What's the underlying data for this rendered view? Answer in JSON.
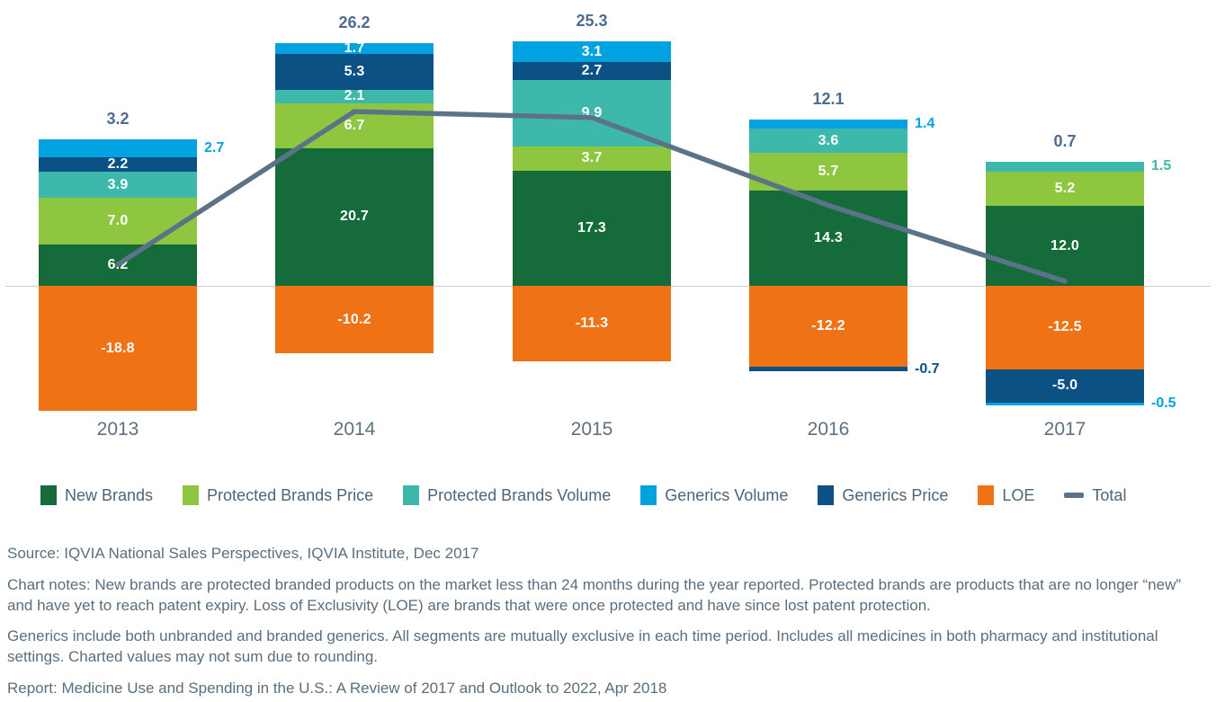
{
  "chart_data": {
    "type": "bar",
    "subtype": "stacked-bar-with-total-line",
    "title": "",
    "xlabel": "",
    "ylabel": "",
    "gridlines": false,
    "zero_line": true,
    "ylim": [
      -25,
      40
    ],
    "categories": [
      "2013",
      "2014",
      "2015",
      "2016",
      "2017"
    ],
    "series": [
      {
        "name": "New Brands",
        "color": "#156B39",
        "values": [
          6.2,
          20.7,
          17.3,
          14.3,
          12.0
        ]
      },
      {
        "name": "Protected Brands Price",
        "color": "#8FC640",
        "values": [
          7.0,
          6.7,
          3.7,
          5.7,
          5.2
        ]
      },
      {
        "name": "Protected Brands Volume",
        "color": "#3EB8AB",
        "values": [
          3.9,
          2.1,
          9.9,
          3.6,
          1.5
        ]
      },
      {
        "name": "Generics Volume",
        "color": "#00A3E0",
        "values": [
          2.7,
          1.7,
          3.1,
          1.4,
          -0.5
        ]
      },
      {
        "name": "Generics Price",
        "color": "#0C5183",
        "values": [
          2.2,
          5.3,
          2.7,
          -0.7,
          -5.0
        ]
      },
      {
        "name": "LOE",
        "color": "#EF7315",
        "values": [
          -18.8,
          -10.2,
          -11.3,
          -12.2,
          -12.5
        ]
      }
    ],
    "line_series": {
      "name": "Total",
      "color": "#5B7389",
      "values": [
        3.2,
        26.2,
        25.3,
        12.1,
        0.7
      ]
    },
    "stack_order_above": [
      "New Brands",
      "Protected Brands Price",
      "Protected Brands Volume",
      "Generics Price",
      "Generics Volume"
    ],
    "stack_order_below": [
      "LOE",
      "Generics Price",
      "Generics Volume"
    ],
    "outside_labels": [
      [
        "2013",
        "Generics Volume"
      ],
      [
        "2016",
        "Generics Volume"
      ],
      [
        "2016",
        "Generics Price"
      ],
      [
        "2017",
        "Protected Brands Volume"
      ],
      [
        "2017",
        "Generics Volume"
      ]
    ],
    "legend": [
      {
        "label": "New Brands",
        "color": "#156B39",
        "swatch": "rect"
      },
      {
        "label": "Protected Brands Price",
        "color": "#8FC640",
        "swatch": "rect"
      },
      {
        "label": "Protected Brands Volume",
        "color": "#3EB8AB",
        "swatch": "rect"
      },
      {
        "label": "Generics Volume",
        "color": "#00A3E0",
        "swatch": "rect"
      },
      {
        "label": "Generics Price",
        "color": "#0C5183",
        "swatch": "rect"
      },
      {
        "label": "LOE",
        "color": "#EF7315",
        "swatch": "rect"
      },
      {
        "label": "Total",
        "color": "#5B7389",
        "swatch": "line"
      }
    ],
    "legend_position": "bottom"
  },
  "notes": {
    "source": "Source: IQVIA National Sales Perspectives, IQVIA Institute, Dec 2017",
    "note1": "Chart notes: New brands are protected branded products on the market less than 24 months during the year reported. Protected brands are products that are no longer “new” and have yet to reach patent expiry. Loss of Exclusivity (LOE) are brands that were once protected and have since lost patent protection.",
    "note2": "Generics include both unbranded and branded generics. All segments are mutually exclusive in each time period. Includes all medicines in both pharmacy and institutional settings. Charted values may not sum due to rounding.",
    "report": "Report: Medicine Use and Spending in the U.S.: A Review of 2017 and Outlook to 2022, Apr 2018"
  }
}
